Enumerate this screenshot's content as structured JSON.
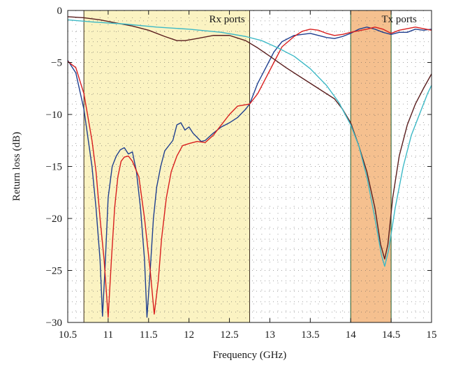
{
  "chart_data": {
    "type": "line",
    "xlabel": "Frequency (GHz)",
    "ylabel": "Return loss (dB)",
    "xlim": [
      10.5,
      15
    ],
    "ylim": [
      -30,
      0
    ],
    "xticks": [
      "10.5",
      "11",
      "11.5",
      "12",
      "12.5",
      "13",
      "13.5",
      "14",
      "14.5",
      "15"
    ],
    "yticks": [
      "0",
      "−5",
      "−10",
      "−15",
      "−20",
      "−25",
      "−30"
    ],
    "grid": "dotted",
    "bands": [
      {
        "label": "Rx ports",
        "x": [
          10.7,
          12.75
        ],
        "color": "#fbf3c2",
        "edge_color": "#3a2a1a"
      },
      {
        "label": "Tx ports",
        "x": [
          14.0,
          14.5
        ],
        "color": "#f5c08f",
        "edge_color": "#1f5a2a"
      }
    ],
    "series": [
      {
        "color": "#1f3f8f",
        "points": [
          [
            10.5,
            -4.8
          ],
          [
            10.6,
            -6.0
          ],
          [
            10.7,
            -9.5
          ],
          [
            10.8,
            -15
          ],
          [
            10.85,
            -19
          ],
          [
            10.9,
            -24
          ],
          [
            10.93,
            -29.4
          ],
          [
            10.96,
            -25
          ],
          [
            11.0,
            -18
          ],
          [
            11.05,
            -15
          ],
          [
            11.1,
            -14
          ],
          [
            11.15,
            -13.4
          ],
          [
            11.2,
            -13.2
          ],
          [
            11.25,
            -13.8
          ],
          [
            11.3,
            -13.6
          ],
          [
            11.35,
            -15.5
          ],
          [
            11.4,
            -19
          ],
          [
            11.45,
            -24
          ],
          [
            11.48,
            -29.5
          ],
          [
            11.52,
            -25
          ],
          [
            11.56,
            -20
          ],
          [
            11.6,
            -17
          ],
          [
            11.65,
            -15
          ],
          [
            11.7,
            -13.5
          ],
          [
            11.8,
            -12.5
          ],
          [
            11.85,
            -11
          ],
          [
            11.9,
            -10.8
          ],
          [
            11.95,
            -11.5
          ],
          [
            12.0,
            -11.2
          ],
          [
            12.05,
            -11.8
          ],
          [
            12.1,
            -12.2
          ],
          [
            12.15,
            -12.6
          ],
          [
            12.2,
            -12.5
          ],
          [
            12.3,
            -11.8
          ],
          [
            12.4,
            -11.2
          ],
          [
            12.5,
            -10.8
          ],
          [
            12.6,
            -10.3
          ],
          [
            12.7,
            -9.5
          ],
          [
            12.75,
            -9
          ],
          [
            12.85,
            -7
          ],
          [
            12.95,
            -5.5
          ],
          [
            13.05,
            -4.0
          ],
          [
            13.15,
            -3.0
          ],
          [
            13.3,
            -2.4
          ],
          [
            13.5,
            -2.2
          ],
          [
            13.7,
            -2.6
          ],
          [
            13.8,
            -2.7
          ],
          [
            13.9,
            -2.5
          ],
          [
            14.0,
            -2.2
          ],
          [
            14.1,
            -1.8
          ],
          [
            14.2,
            -1.6
          ],
          [
            14.3,
            -1.8
          ],
          [
            14.4,
            -2.1
          ],
          [
            14.5,
            -2.3
          ],
          [
            14.6,
            -2.1
          ],
          [
            14.7,
            -2.1
          ],
          [
            14.8,
            -1.8
          ],
          [
            14.9,
            -1.9
          ],
          [
            15.0,
            -1.8
          ]
        ]
      },
      {
        "color": "#d81e1e",
        "points": [
          [
            10.5,
            -4.9
          ],
          [
            10.6,
            -5.5
          ],
          [
            10.7,
            -8
          ],
          [
            10.8,
            -12.5
          ],
          [
            10.85,
            -15.5
          ],
          [
            10.9,
            -20
          ],
          [
            10.95,
            -24
          ],
          [
            11.0,
            -29.5
          ],
          [
            11.04,
            -24
          ],
          [
            11.08,
            -19
          ],
          [
            11.12,
            -16
          ],
          [
            11.16,
            -14.5
          ],
          [
            11.2,
            -14.1
          ],
          [
            11.25,
            -14.0
          ],
          [
            11.3,
            -14.5
          ],
          [
            11.38,
            -16
          ],
          [
            11.45,
            -20
          ],
          [
            11.52,
            -25
          ],
          [
            11.57,
            -29.2
          ],
          [
            11.62,
            -26
          ],
          [
            11.66,
            -22
          ],
          [
            11.72,
            -18
          ],
          [
            11.78,
            -15.5
          ],
          [
            11.85,
            -14
          ],
          [
            11.92,
            -13
          ],
          [
            12.0,
            -12.8
          ],
          [
            12.1,
            -12.6
          ],
          [
            12.2,
            -12.7
          ],
          [
            12.3,
            -12
          ],
          [
            12.4,
            -11
          ],
          [
            12.5,
            -10
          ],
          [
            12.6,
            -9.2
          ],
          [
            12.75,
            -9
          ],
          [
            12.85,
            -8
          ],
          [
            12.95,
            -6.5
          ],
          [
            13.05,
            -5
          ],
          [
            13.15,
            -3.5
          ],
          [
            13.3,
            -2.5
          ],
          [
            13.4,
            -2.0
          ],
          [
            13.5,
            -1.8
          ],
          [
            13.6,
            -1.9
          ],
          [
            13.7,
            -2.2
          ],
          [
            13.8,
            -2.4
          ],
          [
            13.9,
            -2.3
          ],
          [
            14.0,
            -2.1
          ],
          [
            14.2,
            -1.8
          ],
          [
            14.3,
            -1.6
          ],
          [
            14.4,
            -1.8
          ],
          [
            14.5,
            -2.2
          ],
          [
            14.6,
            -1.9
          ],
          [
            14.8,
            -1.6
          ],
          [
            15.0,
            -1.9
          ]
        ]
      },
      {
        "color": "#5a1e1e",
        "points": [
          [
            10.5,
            -0.6
          ],
          [
            10.7,
            -0.7
          ],
          [
            10.9,
            -0.9
          ],
          [
            11.1,
            -1.2
          ],
          [
            11.3,
            -1.5
          ],
          [
            11.5,
            -1.9
          ],
          [
            11.7,
            -2.5
          ],
          [
            11.85,
            -2.9
          ],
          [
            11.95,
            -2.9
          ],
          [
            12.1,
            -2.7
          ],
          [
            12.3,
            -2.4
          ],
          [
            12.5,
            -2.4
          ],
          [
            12.7,
            -2.9
          ],
          [
            12.85,
            -3.6
          ],
          [
            13.0,
            -4.4
          ],
          [
            13.2,
            -5.5
          ],
          [
            13.4,
            -6.5
          ],
          [
            13.6,
            -7.5
          ],
          [
            13.8,
            -8.5
          ],
          [
            13.9,
            -9.5
          ],
          [
            14.0,
            -10.8
          ],
          [
            14.1,
            -13
          ],
          [
            14.2,
            -15.5
          ],
          [
            14.3,
            -19
          ],
          [
            14.37,
            -22.5
          ],
          [
            14.42,
            -23.9
          ],
          [
            14.46,
            -22.5
          ],
          [
            14.52,
            -18
          ],
          [
            14.6,
            -14
          ],
          [
            14.7,
            -11
          ],
          [
            14.8,
            -9
          ],
          [
            14.9,
            -7.5
          ],
          [
            15.0,
            -6.1
          ]
        ]
      },
      {
        "color": "#3cb9c6",
        "points": [
          [
            10.5,
            -0.9
          ],
          [
            10.8,
            -1.1
          ],
          [
            11.2,
            -1.3
          ],
          [
            11.6,
            -1.6
          ],
          [
            12.0,
            -1.8
          ],
          [
            12.4,
            -2.1
          ],
          [
            12.7,
            -2.5
          ],
          [
            12.9,
            -2.9
          ],
          [
            13.1,
            -3.6
          ],
          [
            13.3,
            -4.4
          ],
          [
            13.5,
            -5.6
          ],
          [
            13.7,
            -7.2
          ],
          [
            13.85,
            -8.8
          ],
          [
            14.0,
            -11
          ],
          [
            14.1,
            -13
          ],
          [
            14.2,
            -16
          ],
          [
            14.3,
            -20
          ],
          [
            14.38,
            -23.5
          ],
          [
            14.42,
            -24.6
          ],
          [
            14.47,
            -23
          ],
          [
            14.55,
            -19
          ],
          [
            14.65,
            -15
          ],
          [
            14.75,
            -12
          ],
          [
            14.85,
            -10
          ],
          [
            14.95,
            -8
          ],
          [
            15.0,
            -7.2
          ]
        ]
      }
    ]
  }
}
